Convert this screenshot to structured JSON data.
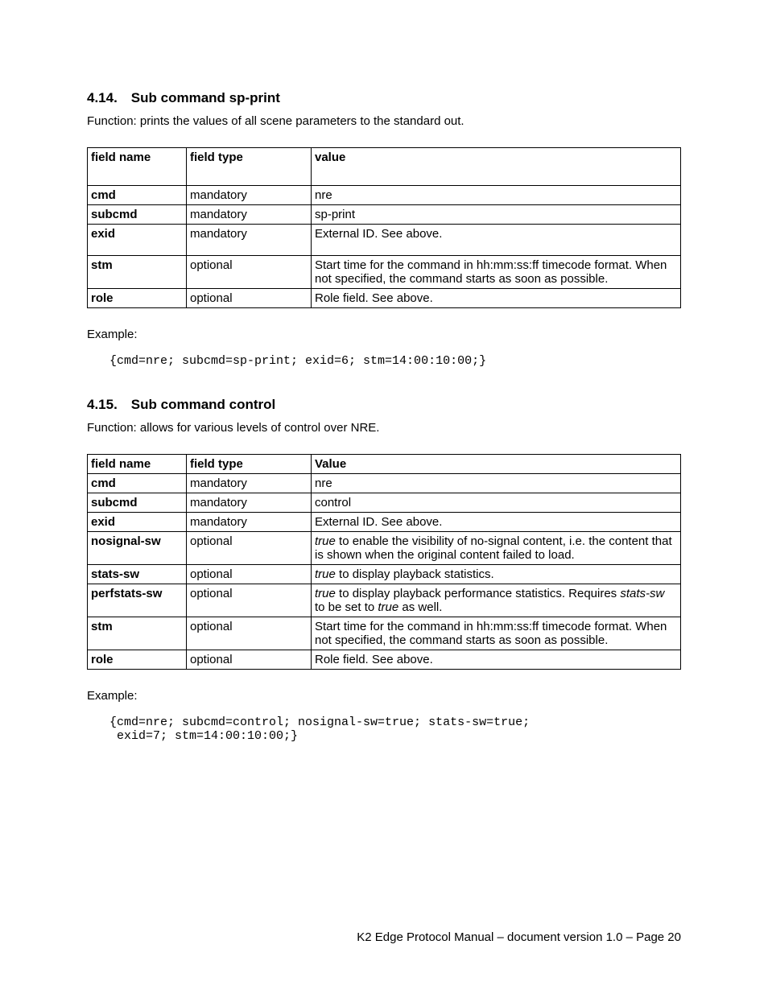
{
  "section1": {
    "heading": "4.14. Sub command sp-print",
    "function": "Function: prints the values of all scene parameters to the standard out.",
    "headers": {
      "name": "field name",
      "type": "field type",
      "value": "value"
    },
    "rows": [
      {
        "name": "cmd",
        "type": "mandatory",
        "value": "nre"
      },
      {
        "name": "subcmd",
        "type": "mandatory",
        "value": "sp-print"
      },
      {
        "name": "exid",
        "type": "mandatory",
        "value": "External ID. See above."
      },
      {
        "name": "stm",
        "type": "optional",
        "value": "Start time for the command in hh:mm:ss:ff timecode format. When not specified, the command starts as soon as possible."
      },
      {
        "name": "role",
        "type": "optional",
        "value": "Role field. See above."
      }
    ],
    "exampleLabel": "Example:",
    "code": "{cmd=nre; subcmd=sp-print; exid=6; stm=14:00:10:00;}"
  },
  "section2": {
    "heading": "4.15. Sub command control",
    "function": "Function: allows for various levels of control over NRE.",
    "headers": {
      "name": "field name",
      "type": "field type",
      "value": "Value"
    },
    "rows": [
      {
        "name": "cmd",
        "type": "mandatory",
        "value": "nre"
      },
      {
        "name": "subcmd",
        "type": "mandatory",
        "value": "control"
      },
      {
        "name": "exid",
        "type": "mandatory",
        "value": "External ID. See above."
      },
      {
        "name": "nosignal-sw",
        "type": "optional",
        "value_html": "<span class=\"italic\">true</span> to enable the visibility of no-signal content, i.e. the content that is shown when the original content failed to load."
      },
      {
        "name": "stats-sw",
        "type": "optional",
        "value_html": "<span class=\"italic\">true</span> to display playback statistics."
      },
      {
        "name": "perfstats-sw",
        "type": "optional",
        "value_html": "<span class=\"italic\">true</span> to display playback performance statistics. Requires <span class=\"italic\">stats-sw</span> to be set to <span class=\"italic\">true</span> as well."
      },
      {
        "name": "stm",
        "type": "optional",
        "value": "Start time for the command in hh:mm:ss:ff timecode format. When not specified, the command starts as soon as possible."
      },
      {
        "name": "role",
        "type": "optional",
        "value": "Role field. See above."
      }
    ],
    "exampleLabel": "Example:",
    "code": "{cmd=nre; subcmd=control; nosignal-sw=true; stats-sw=true;\n exid=7; stm=14:00:10:00;}"
  },
  "footer": "K2 Edge Protocol Manual – document version 1.0 – Page 20"
}
